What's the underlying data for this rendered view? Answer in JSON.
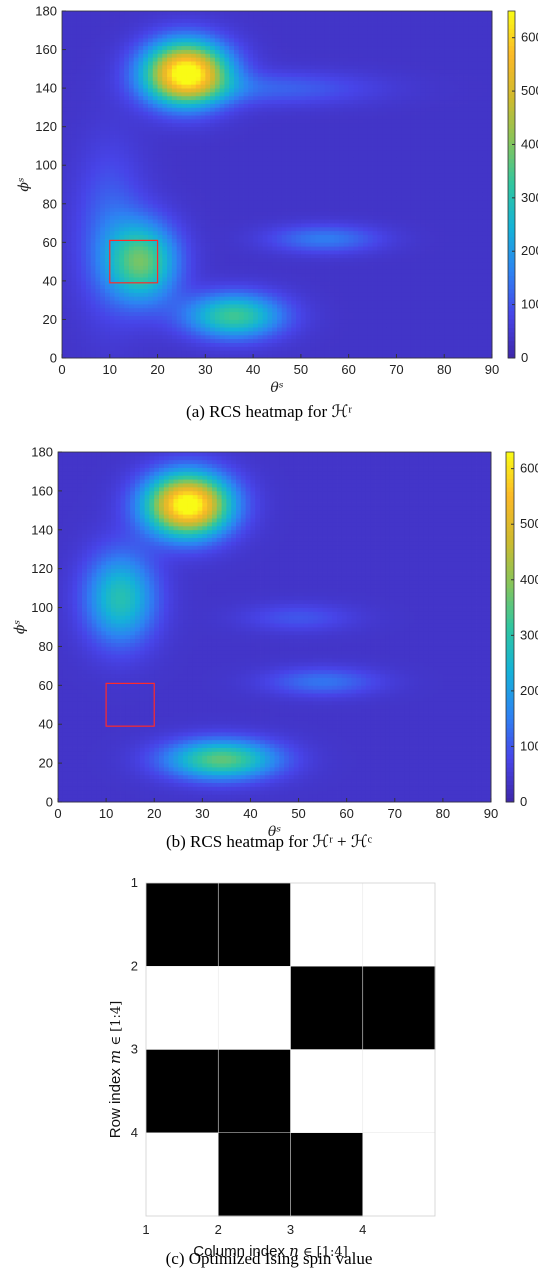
{
  "chart_data": [
    {
      "type": "heatmap",
      "id": "a",
      "caption": "(a) RCS heatmap for ℋʳ",
      "x": [
        0,
        10,
        20,
        30,
        40,
        50,
        60,
        70,
        80,
        90
      ],
      "y": [
        0,
        20,
        40,
        60,
        80,
        100,
        120,
        140,
        160,
        180
      ],
      "xlim": [
        0,
        90
      ],
      "ylim": [
        0,
        180
      ],
      "xlabel": "θˢ",
      "ylabel": "ϕˢ",
      "colorbar": {
        "min": 0,
        "max": 650,
        "ticks": [
          0,
          100,
          200,
          300,
          400,
          500,
          600
        ]
      },
      "colormap": [
        "#3e26a8",
        "#4744e8",
        "#2d83f2",
        "#14b2d8",
        "#2fc6a0",
        "#86c55a",
        "#cfba2d",
        "#fbb927",
        "#f9fb15"
      ],
      "blobs": [
        {
          "x": 26,
          "y": 148,
          "peak": 650,
          "sx": 6.0,
          "sy": 11.0
        },
        {
          "x": 17,
          "y": 50,
          "peak": 320,
          "sx": 5.0,
          "sy": 14.0
        },
        {
          "x": 36,
          "y": 22,
          "peak": 300,
          "sx": 7.0,
          "sy": 8.0
        },
        {
          "x": 55,
          "y": 62,
          "peak": 115,
          "sx": 8.0,
          "sy": 5.0
        },
        {
          "x": 10,
          "y": 65,
          "peak": 90,
          "sx": 5.0,
          "sy": 30.0
        },
        {
          "x": 45,
          "y": 140,
          "peak": 80,
          "sx": 14.0,
          "sy": 6.0
        }
      ],
      "base": 40,
      "rect": {
        "x0": 10,
        "x1": 20,
        "y0": 39,
        "y1": 61,
        "color": "#ff2a2a"
      }
    },
    {
      "type": "heatmap",
      "id": "b",
      "caption": "(b) RCS heatmap for ℋʳ + ℋᶜ",
      "x": [
        0,
        10,
        20,
        30,
        40,
        50,
        60,
        70,
        80,
        90
      ],
      "y": [
        0,
        20,
        40,
        60,
        80,
        100,
        120,
        140,
        160,
        180
      ],
      "xlim": [
        0,
        90
      ],
      "ylim": [
        0,
        180
      ],
      "xlabel": "θˢ",
      "ylabel": "ϕˢ",
      "colorbar": {
        "min": 0,
        "max": 630,
        "ticks": [
          0,
          100,
          200,
          300,
          400,
          500,
          600
        ]
      },
      "colormap": [
        "#3e26a8",
        "#4744e8",
        "#2d83f2",
        "#14b2d8",
        "#2fc6a0",
        "#86c55a",
        "#cfba2d",
        "#fbb927",
        "#f9fb15"
      ],
      "blobs": [
        {
          "x": 27,
          "y": 153,
          "peak": 630,
          "sx": 6.0,
          "sy": 11.0
        },
        {
          "x": 13,
          "y": 105,
          "peak": 250,
          "sx": 5.0,
          "sy": 16.0
        },
        {
          "x": 34,
          "y": 22,
          "peak": 320,
          "sx": 8.0,
          "sy": 7.0
        },
        {
          "x": 55,
          "y": 62,
          "peak": 100,
          "sx": 8.0,
          "sy": 5.0
        },
        {
          "x": 50,
          "y": 95,
          "peak": 60,
          "sx": 8.0,
          "sy": 5.0
        }
      ],
      "base": 40,
      "rect": {
        "x0": 10,
        "x1": 20,
        "y0": 39,
        "y1": 61,
        "color": "#ff2a2a"
      }
    },
    {
      "type": "heatmap",
      "id": "c",
      "caption": "(c) Optimized Ising spin value",
      "xlabel_text": "Column index ",
      "xlabel_var": "n",
      "xlabel_suffix": " ∈ [1:4]",
      "ylabel_text": "Row index ",
      "ylabel_var": "m",
      "ylabel_suffix": " ∈ [1:4]",
      "xticks": [
        "1",
        "2",
        "3",
        "4"
      ],
      "yticks": [
        "1",
        "2",
        "3",
        "4"
      ],
      "grid": [
        [
          1,
          1,
          0,
          0
        ],
        [
          0,
          0,
          1,
          1
        ],
        [
          1,
          1,
          0,
          0
        ],
        [
          0,
          1,
          1,
          0
        ]
      ],
      "colors": {
        "on": "#000000",
        "off": "#ffffff"
      }
    }
  ]
}
